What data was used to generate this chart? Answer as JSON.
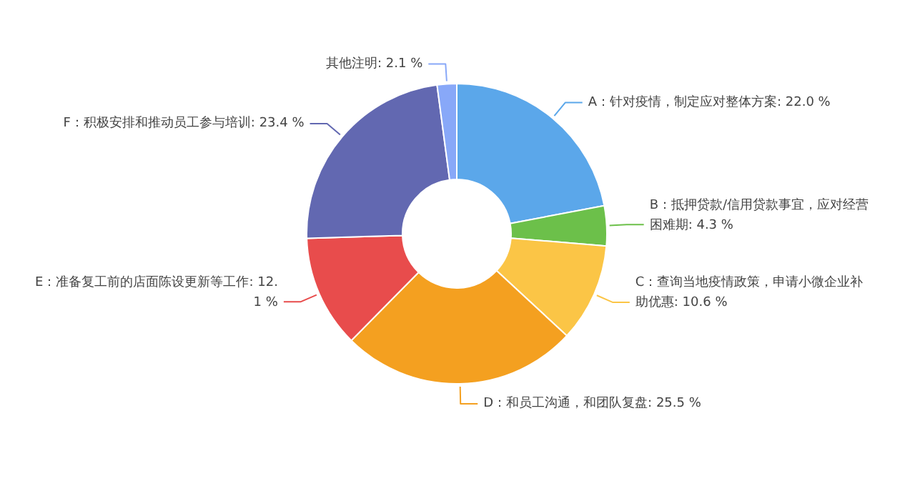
{
  "chart_data": {
    "type": "donut",
    "categories": [
      "A：针对疫情，制定应对整体方案",
      "B：抵押贷款/信用贷款事宜，应对经营困难期",
      "C：查询当地疫情政策，申请小微企业补助优惠",
      "D：和员工沟通，和团队复盘",
      "E：准备复工前的店面陈设更新等工作",
      "F：积极安排和推动员工参与培训",
      "其他注明"
    ],
    "values": [
      22.0,
      4.3,
      10.6,
      25.5,
      12.1,
      23.4,
      2.1
    ],
    "value_labels": [
      "22.0 %",
      "4.3 %",
      "10.6 %",
      "25.5 %",
      "12.1 %",
      "23.4 %",
      "2.1 %"
    ],
    "colors": [
      "#5ba7ea",
      "#6cc04a",
      "#fbc546",
      "#f4a020",
      "#e84c4c",
      "#6268b1",
      "#88a8f8"
    ]
  }
}
